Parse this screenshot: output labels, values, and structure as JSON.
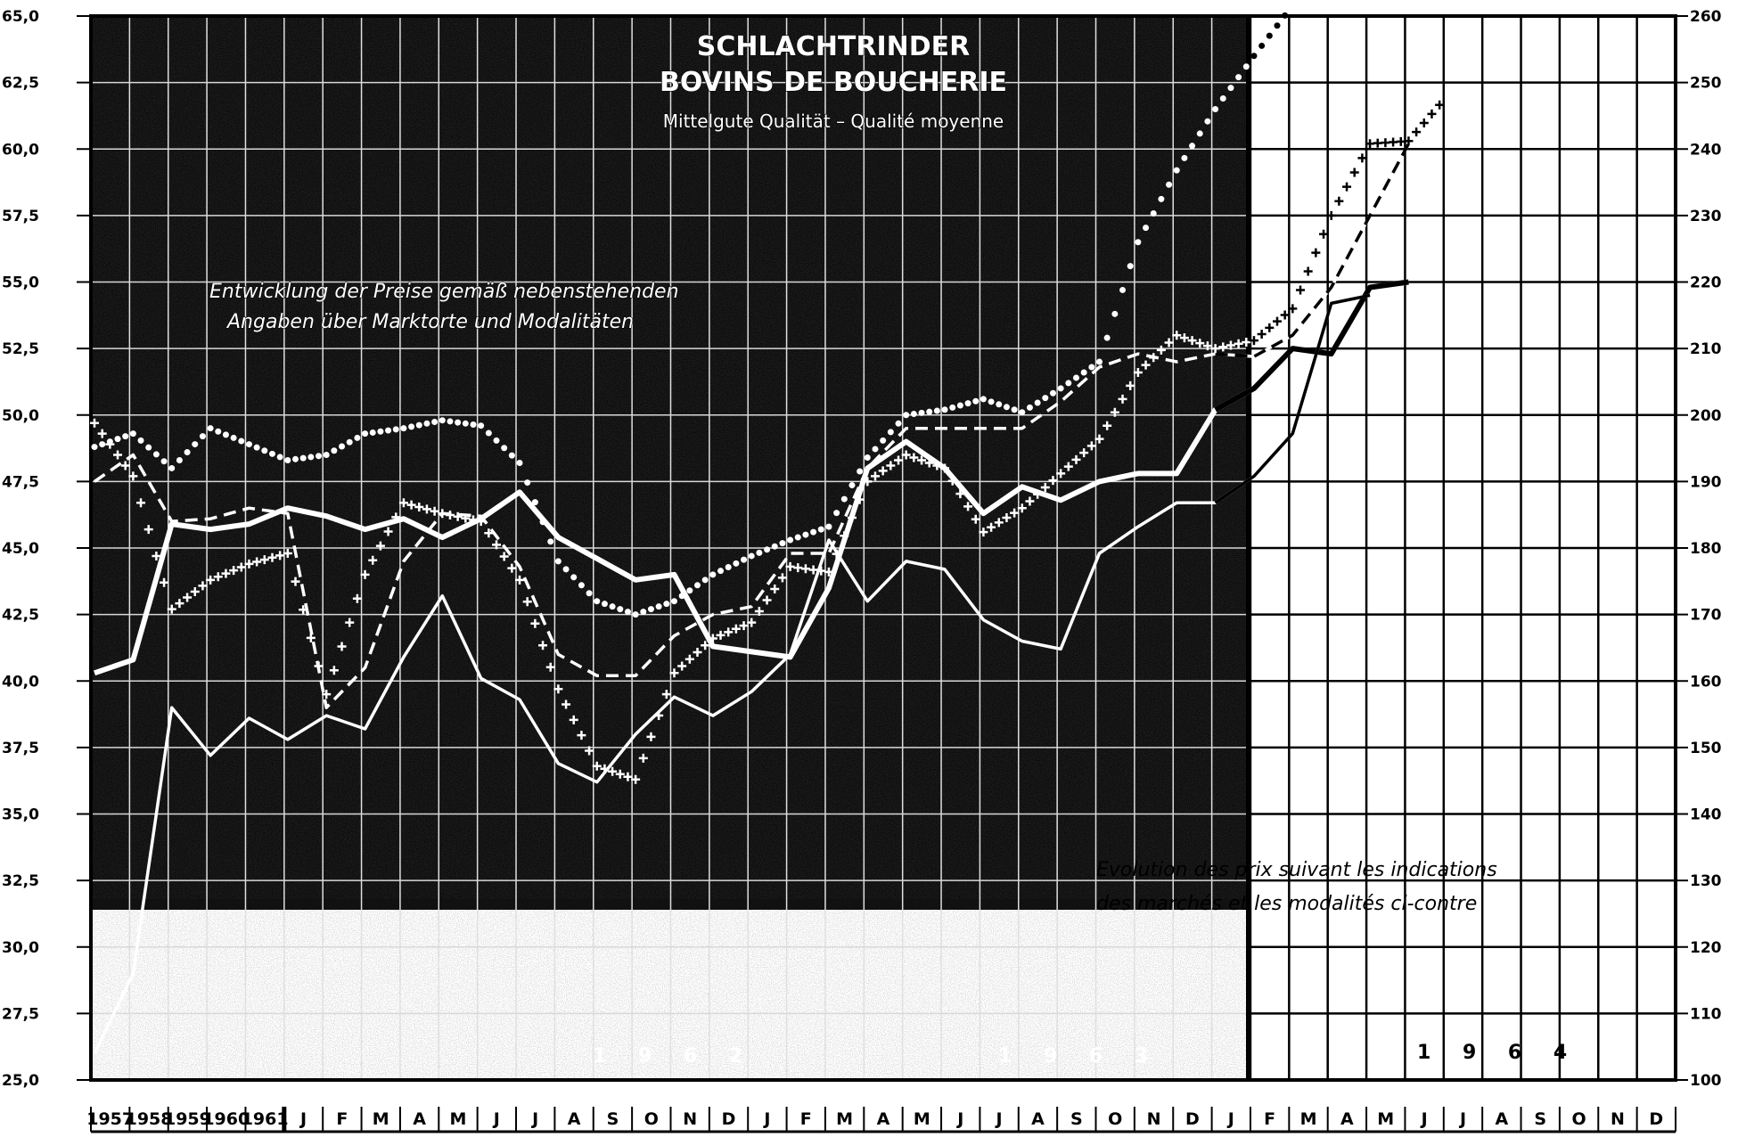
{
  "chart_data": {
    "type": "line",
    "title": "SCHLACHTRINDER",
    "subtitle": "BOVINS DE BOUCHERIE",
    "quality_note": "Mittelgute Qualität – Qualité moyenne",
    "note_de_line1": "Entwicklung der Preise gemäß nebenstehenden",
    "note_de_line2": "Angaben über Marktorte und Modalitäten",
    "note_fr_line1": "Evolution des prix suivant les indications",
    "note_fr_line2": "des marchés et les modalités ci-contre",
    "year_labels": [
      "1 9 6 2",
      "1 9 6 3",
      "1 9 6 4"
    ],
    "x_labels": [
      "1957",
      "1958",
      "1959",
      "1960",
      "1961",
      "J",
      "F",
      "M",
      "A",
      "M",
      "J",
      "J",
      "A",
      "S",
      "O",
      "N",
      "D",
      "J",
      "F",
      "M",
      "A",
      "M",
      "J",
      "J",
      "A",
      "S",
      "O",
      "N",
      "D",
      "J",
      "F",
      "M",
      "A",
      "M",
      "J",
      "J",
      "A",
      "S",
      "O",
      "N",
      "D"
    ],
    "y_left_ticks": [
      "65,0",
      "62,5",
      "60,0",
      "57,5",
      "55,0",
      "52,5",
      "50,0",
      "47,5",
      "45,0",
      "42,5",
      "40,0",
      "37,5",
      "35,0",
      "32,5",
      "30,0",
      "27,5",
      "25,0"
    ],
    "y_right_ticks": [
      "260",
      "250",
      "240",
      "230",
      "220",
      "210",
      "200",
      "190",
      "180",
      "170",
      "160",
      "150",
      "140",
      "130",
      "120",
      "110",
      "100"
    ],
    "y_left_range": [
      25,
      65
    ],
    "y_right_range": [
      100,
      260
    ],
    "grid": true,
    "series": [
      {
        "style": "solid-thick",
        "values": [
          40.3,
          40.8,
          45.9,
          45.7,
          45.9,
          46.5,
          46.2,
          45.7,
          46.1,
          45.4,
          46.1,
          47.1,
          45.4,
          44.6,
          43.8,
          44.0,
          41.3,
          41.1,
          40.9,
          43.5,
          48.0,
          49.0,
          48.0,
          46.3,
          47.3,
          46.8,
          47.5,
          47.8,
          47.8,
          50.2,
          51.0,
          52.5,
          52.3,
          54.8,
          55.0
        ]
      },
      {
        "style": "solid-thin",
        "values": [
          26.0,
          29.0,
          39.0,
          37.2,
          38.6,
          37.8,
          38.7,
          38.2,
          40.9,
          43.2,
          40.1,
          39.3,
          36.9,
          36.2,
          38.0,
          39.4,
          38.7,
          39.6,
          41.0,
          45.3,
          43.0,
          44.5,
          44.2,
          42.3,
          41.5,
          41.2,
          44.8,
          45.8,
          46.7,
          46.7,
          47.7,
          49.3,
          54.2,
          54.5
        ]
      },
      {
        "style": "dashed",
        "values": [
          47.5,
          48.5,
          46.0,
          46.1,
          46.5,
          46.3,
          39.0,
          40.5,
          44.5,
          46.3,
          46.2,
          44.3,
          41.0,
          40.2,
          40.2,
          41.7,
          42.5,
          42.8,
          44.8,
          44.8,
          48.0,
          49.5,
          49.5,
          49.5,
          49.5,
          50.5,
          51.8,
          52.3,
          52.0,
          52.3,
          52.2,
          53.0,
          54.8,
          57.5,
          60.2
        ]
      },
      {
        "style": "crosses",
        "values": [
          49.7,
          47.7,
          42.7,
          43.8,
          44.4,
          44.8,
          39.5,
          44.0,
          46.7,
          46.3,
          46.0,
          43.8,
          39.7,
          36.8,
          36.3,
          40.3,
          41.6,
          42.2,
          44.3,
          44.1,
          47.5,
          48.5,
          48.0,
          45.6,
          46.5,
          47.8,
          49.1,
          51.6,
          53.0,
          52.5,
          52.8,
          54.0,
          57.5,
          60.2,
          60.3,
          62.0
        ]
      },
      {
        "style": "dotted",
        "values": [
          48.8,
          49.3,
          48.0,
          49.5,
          48.9,
          48.3,
          48.5,
          49.3,
          49.5,
          49.8,
          49.6,
          48.2,
          44.5,
          43.0,
          42.5,
          43.0,
          44.0,
          44.7,
          45.3,
          45.8,
          48.4,
          50.0,
          50.2,
          50.6,
          50.1,
          51.0,
          52.0,
          56.5,
          59.2,
          61.5,
          63.5,
          65.4
        ]
      }
    ]
  }
}
